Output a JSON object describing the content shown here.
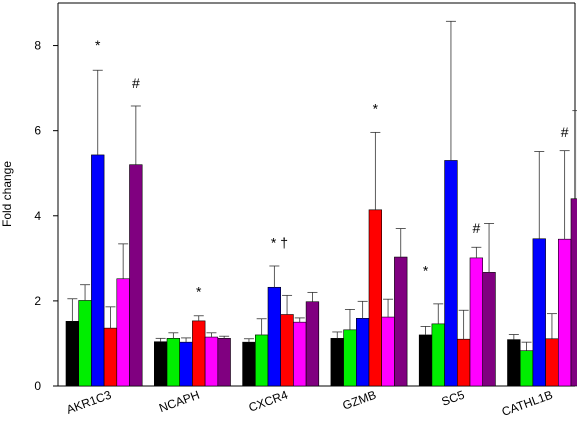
{
  "chart_data": {
    "type": "bar",
    "title": "",
    "xlabel": "",
    "ylabel": "Fold change",
    "ylim": [
      0,
      9
    ],
    "yticks": [
      0,
      2,
      4,
      6,
      8
    ],
    "grid": false,
    "legend": "none",
    "categories": [
      "AKR1C3",
      "NCAPH",
      "CXCR4",
      "GZMB",
      "SC5",
      "CATHL1B"
    ],
    "series": [
      {
        "color": "#000000",
        "values": [
          1.52,
          1.04,
          1.03,
          1.12,
          1.2,
          1.09
        ],
        "errors": [
          0.53,
          0.08,
          0.08,
          0.15,
          0.2,
          0.12
        ]
      },
      {
        "color": "#00ee00",
        "values": [
          2.01,
          1.12,
          1.2,
          1.32,
          1.46,
          0.83
        ],
        "errors": [
          0.37,
          0.13,
          0.38,
          0.48,
          0.47,
          0.2
        ]
      },
      {
        "color": "#0000ff",
        "values": [
          5.43,
          1.03,
          2.32,
          1.59,
          5.3,
          3.46
        ],
        "errors": [
          1.99,
          0.1,
          0.5,
          0.4,
          3.27,
          2.05
        ]
      },
      {
        "color": "#ff0000",
        "values": [
          1.36,
          1.53,
          1.68,
          4.14,
          1.1,
          1.11
        ],
        "errors": [
          0.5,
          0.12,
          0.45,
          1.82,
          0.68,
          0.59
        ]
      },
      {
        "color": "#ff00ff",
        "values": [
          2.52,
          1.15,
          1.5,
          1.62,
          3.01,
          3.45
        ],
        "errors": [
          0.82,
          0.1,
          0.1,
          0.42,
          0.25,
          2.08
        ]
      },
      {
        "color": "#800080",
        "values": [
          5.2,
          1.12,
          1.98,
          3.03,
          2.67,
          4.4
        ],
        "errors": [
          1.38,
          0.05,
          0.22,
          0.67,
          1.15,
          2.07
        ]
      }
    ],
    "annotations": [
      {
        "text": "*",
        "category": 0,
        "series": 2,
        "y": 7.9
      },
      {
        "text": "#",
        "category": 0,
        "series": 5,
        "y": 7.0
      },
      {
        "text": "*",
        "category": 1,
        "series": 3,
        "y": 2.1
      },
      {
        "text": "* †",
        "category": 2,
        "series": 2.4,
        "y": 3.25
      },
      {
        "text": "*",
        "category": 3,
        "series": 3,
        "y": 6.4
      },
      {
        "text": "*",
        "category": 4,
        "series": 0,
        "y": 2.6
      },
      {
        "text": "#",
        "category": 4,
        "series": 4,
        "y": 3.6
      },
      {
        "text": "#",
        "category": 5,
        "series": 4,
        "y": 5.85
      }
    ]
  }
}
